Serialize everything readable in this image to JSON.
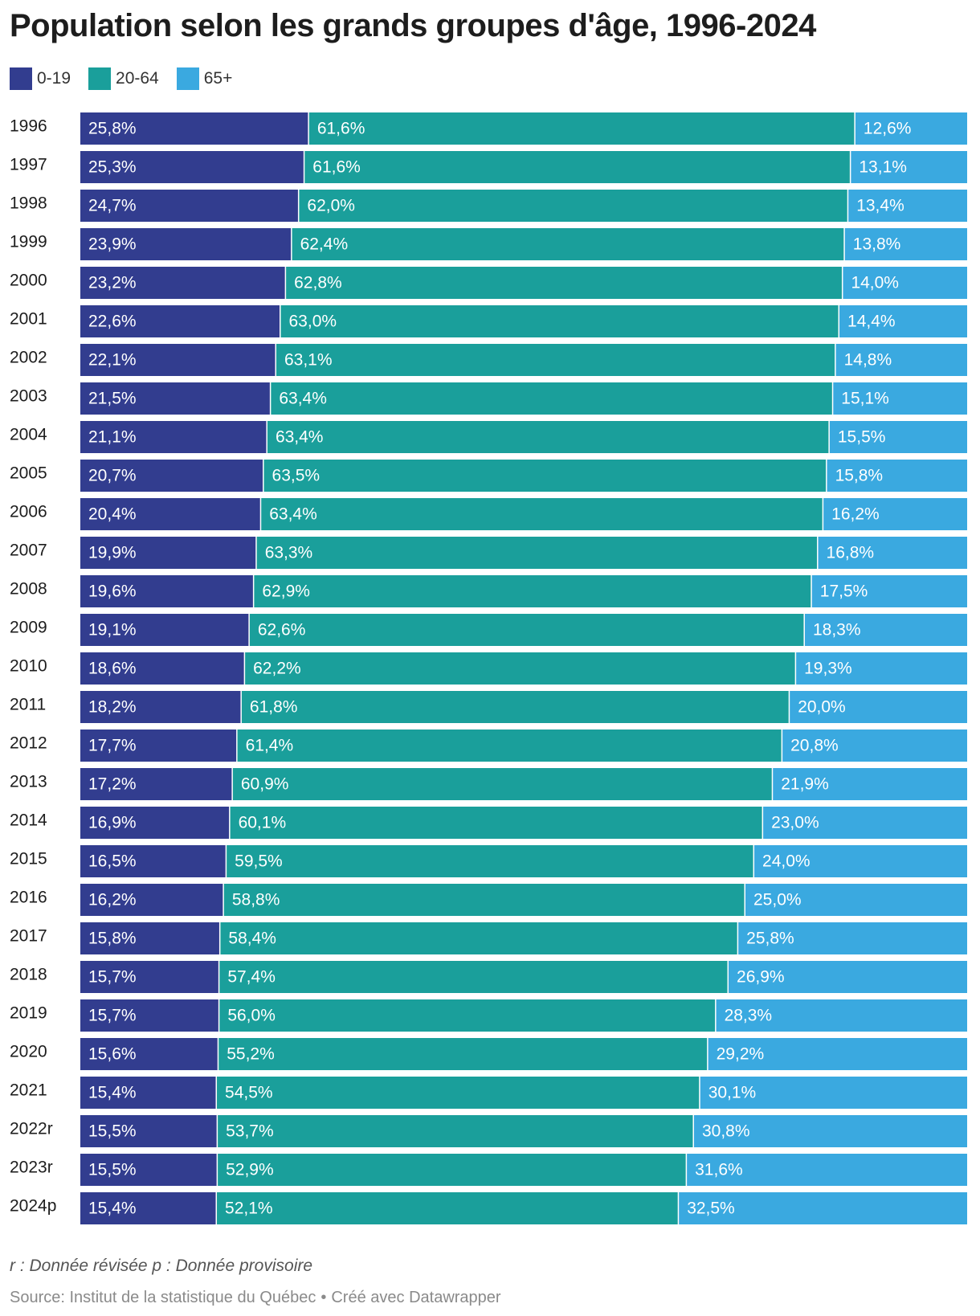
{
  "chart_data": {
    "type": "bar",
    "orientation": "horizontal",
    "stacked": true,
    "title": "Population selon les grands groupes d'âge, 1996-2024",
    "categories": [
      "1996",
      "1997",
      "1998",
      "1999",
      "2000",
      "2001",
      "2002",
      "2003",
      "2004",
      "2005",
      "2006",
      "2007",
      "2008",
      "2009",
      "2010",
      "2011",
      "2012",
      "2013",
      "2014",
      "2015",
      "2016",
      "2017",
      "2018",
      "2019",
      "2020",
      "2021",
      "2022r",
      "2023r",
      "2024p"
    ],
    "series": [
      {
        "name": "0-19",
        "color": "#323d8f",
        "values": [
          25.8,
          25.3,
          24.7,
          23.9,
          23.2,
          22.6,
          22.1,
          21.5,
          21.1,
          20.7,
          20.4,
          19.9,
          19.6,
          19.1,
          18.6,
          18.2,
          17.7,
          17.2,
          16.9,
          16.5,
          16.2,
          15.8,
          15.7,
          15.7,
          15.6,
          15.4,
          15.5,
          15.5,
          15.4
        ],
        "labels": [
          "25,8%",
          "25,3%",
          "24,7%",
          "23,9%",
          "23,2%",
          "22,6%",
          "22,1%",
          "21,5%",
          "21,1%",
          "20,7%",
          "20,4%",
          "19,9%",
          "19,6%",
          "19,1%",
          "18,6%",
          "18,2%",
          "17,7%",
          "17,2%",
          "16,9%",
          "16,5%",
          "16,2%",
          "15,8%",
          "15,7%",
          "15,7%",
          "15,6%",
          "15,4%",
          "15,5%",
          "15,5%",
          "15,4%"
        ]
      },
      {
        "name": "20-64",
        "color": "#1a9f9b",
        "values": [
          61.6,
          61.6,
          62.0,
          62.4,
          62.8,
          63.0,
          63.1,
          63.4,
          63.4,
          63.5,
          63.4,
          63.3,
          62.9,
          62.6,
          62.2,
          61.8,
          61.4,
          60.9,
          60.1,
          59.5,
          58.8,
          58.4,
          57.4,
          56.0,
          55.2,
          54.5,
          53.7,
          52.9,
          52.1
        ],
        "labels": [
          "61,6%",
          "61,6%",
          "62,0%",
          "62,4%",
          "62,8%",
          "63,0%",
          "63,1%",
          "63,4%",
          "63,4%",
          "63,5%",
          "63,4%",
          "63,3%",
          "62,9%",
          "62,6%",
          "62,2%",
          "61,8%",
          "61,4%",
          "60,9%",
          "60,1%",
          "59,5%",
          "58,8%",
          "58,4%",
          "57,4%",
          "56,0%",
          "55,2%",
          "54,5%",
          "53,7%",
          "52,9%",
          "52,1%"
        ]
      },
      {
        "name": "65+",
        "color": "#3aa9e0",
        "values": [
          12.6,
          13.1,
          13.4,
          13.8,
          14.0,
          14.4,
          14.8,
          15.1,
          15.5,
          15.8,
          16.2,
          16.8,
          17.5,
          18.3,
          19.3,
          20.0,
          20.8,
          21.9,
          23.0,
          24.0,
          25.0,
          25.8,
          26.9,
          28.3,
          29.2,
          30.1,
          30.8,
          31.6,
          32.5
        ],
        "labels": [
          "12,6%",
          "13,1%",
          "13,4%",
          "13,8%",
          "14,0%",
          "14,4%",
          "14,8%",
          "15,1%",
          "15,5%",
          "15,8%",
          "16,2%",
          "16,8%",
          "17,5%",
          "18,3%",
          "19,3%",
          "20,0%",
          "20,8%",
          "21,9%",
          "23,0%",
          "24,0%",
          "25,0%",
          "25,8%",
          "26,9%",
          "28,3%",
          "29,2%",
          "30,1%",
          "30,8%",
          "31,6%",
          "32,5%"
        ]
      }
    ],
    "legend_position": "top-left",
    "grid": false
  },
  "footnote": "r : Donnée révisée p : Donnée provisoire",
  "source": {
    "text": "Source: Institut de la statistique du Québec",
    "separator": "•",
    "credit": "Créé avec Datawrapper"
  }
}
